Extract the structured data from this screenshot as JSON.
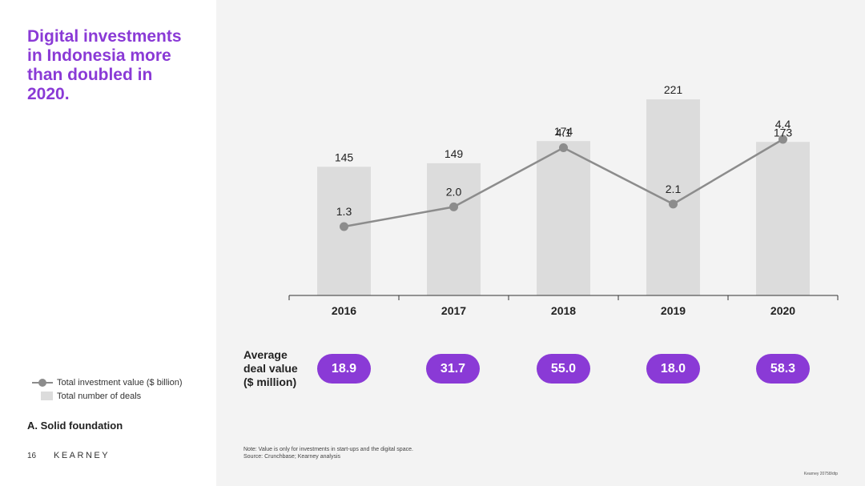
{
  "headline": "Digital investments in Indonesia more than doubled in 2020.",
  "legend": {
    "line_label": "Total investment value ($ billion)",
    "bar_label": "Total number of deals"
  },
  "section_label": "A. Solid foundation",
  "footer": {
    "page_number": "16",
    "brand": "KEARNEY",
    "code": "Kearney 20758/dtp"
  },
  "note_line1": "Note: Value is only for investments in start-ups and the digital space.",
  "note_line2": "Source: Crunchbase; Kearney analysis",
  "avg_deal_label": [
    "Average",
    "deal value",
    "($ million)"
  ],
  "avg_deal_values": [
    "18.9",
    "31.7",
    "55.0",
    "18.0",
    "58.3"
  ],
  "colors": {
    "accent": "#8a3ad6",
    "bar": "#dcdcdc",
    "line": "#8c8c8c",
    "background_panel": "#f3f3f3"
  },
  "chart_data": {
    "type": "bar",
    "categories": [
      "2016",
      "2017",
      "2018",
      "2019",
      "2020"
    ],
    "series": [
      {
        "name": "Total number of deals",
        "type": "bar",
        "values": [
          145,
          149,
          174,
          221,
          173
        ]
      },
      {
        "name": "Total investment value ($ billion)",
        "type": "line",
        "values": [
          1.3,
          2.0,
          4.1,
          2.1,
          4.4
        ]
      }
    ],
    "bar_labels": [
      "145",
      "149",
      "174",
      "221",
      "173"
    ],
    "line_labels": [
      "1.3",
      "2.0",
      "4.1",
      "2.1",
      "4.4"
    ],
    "grid": false,
    "legend_position": "bottom-left"
  }
}
